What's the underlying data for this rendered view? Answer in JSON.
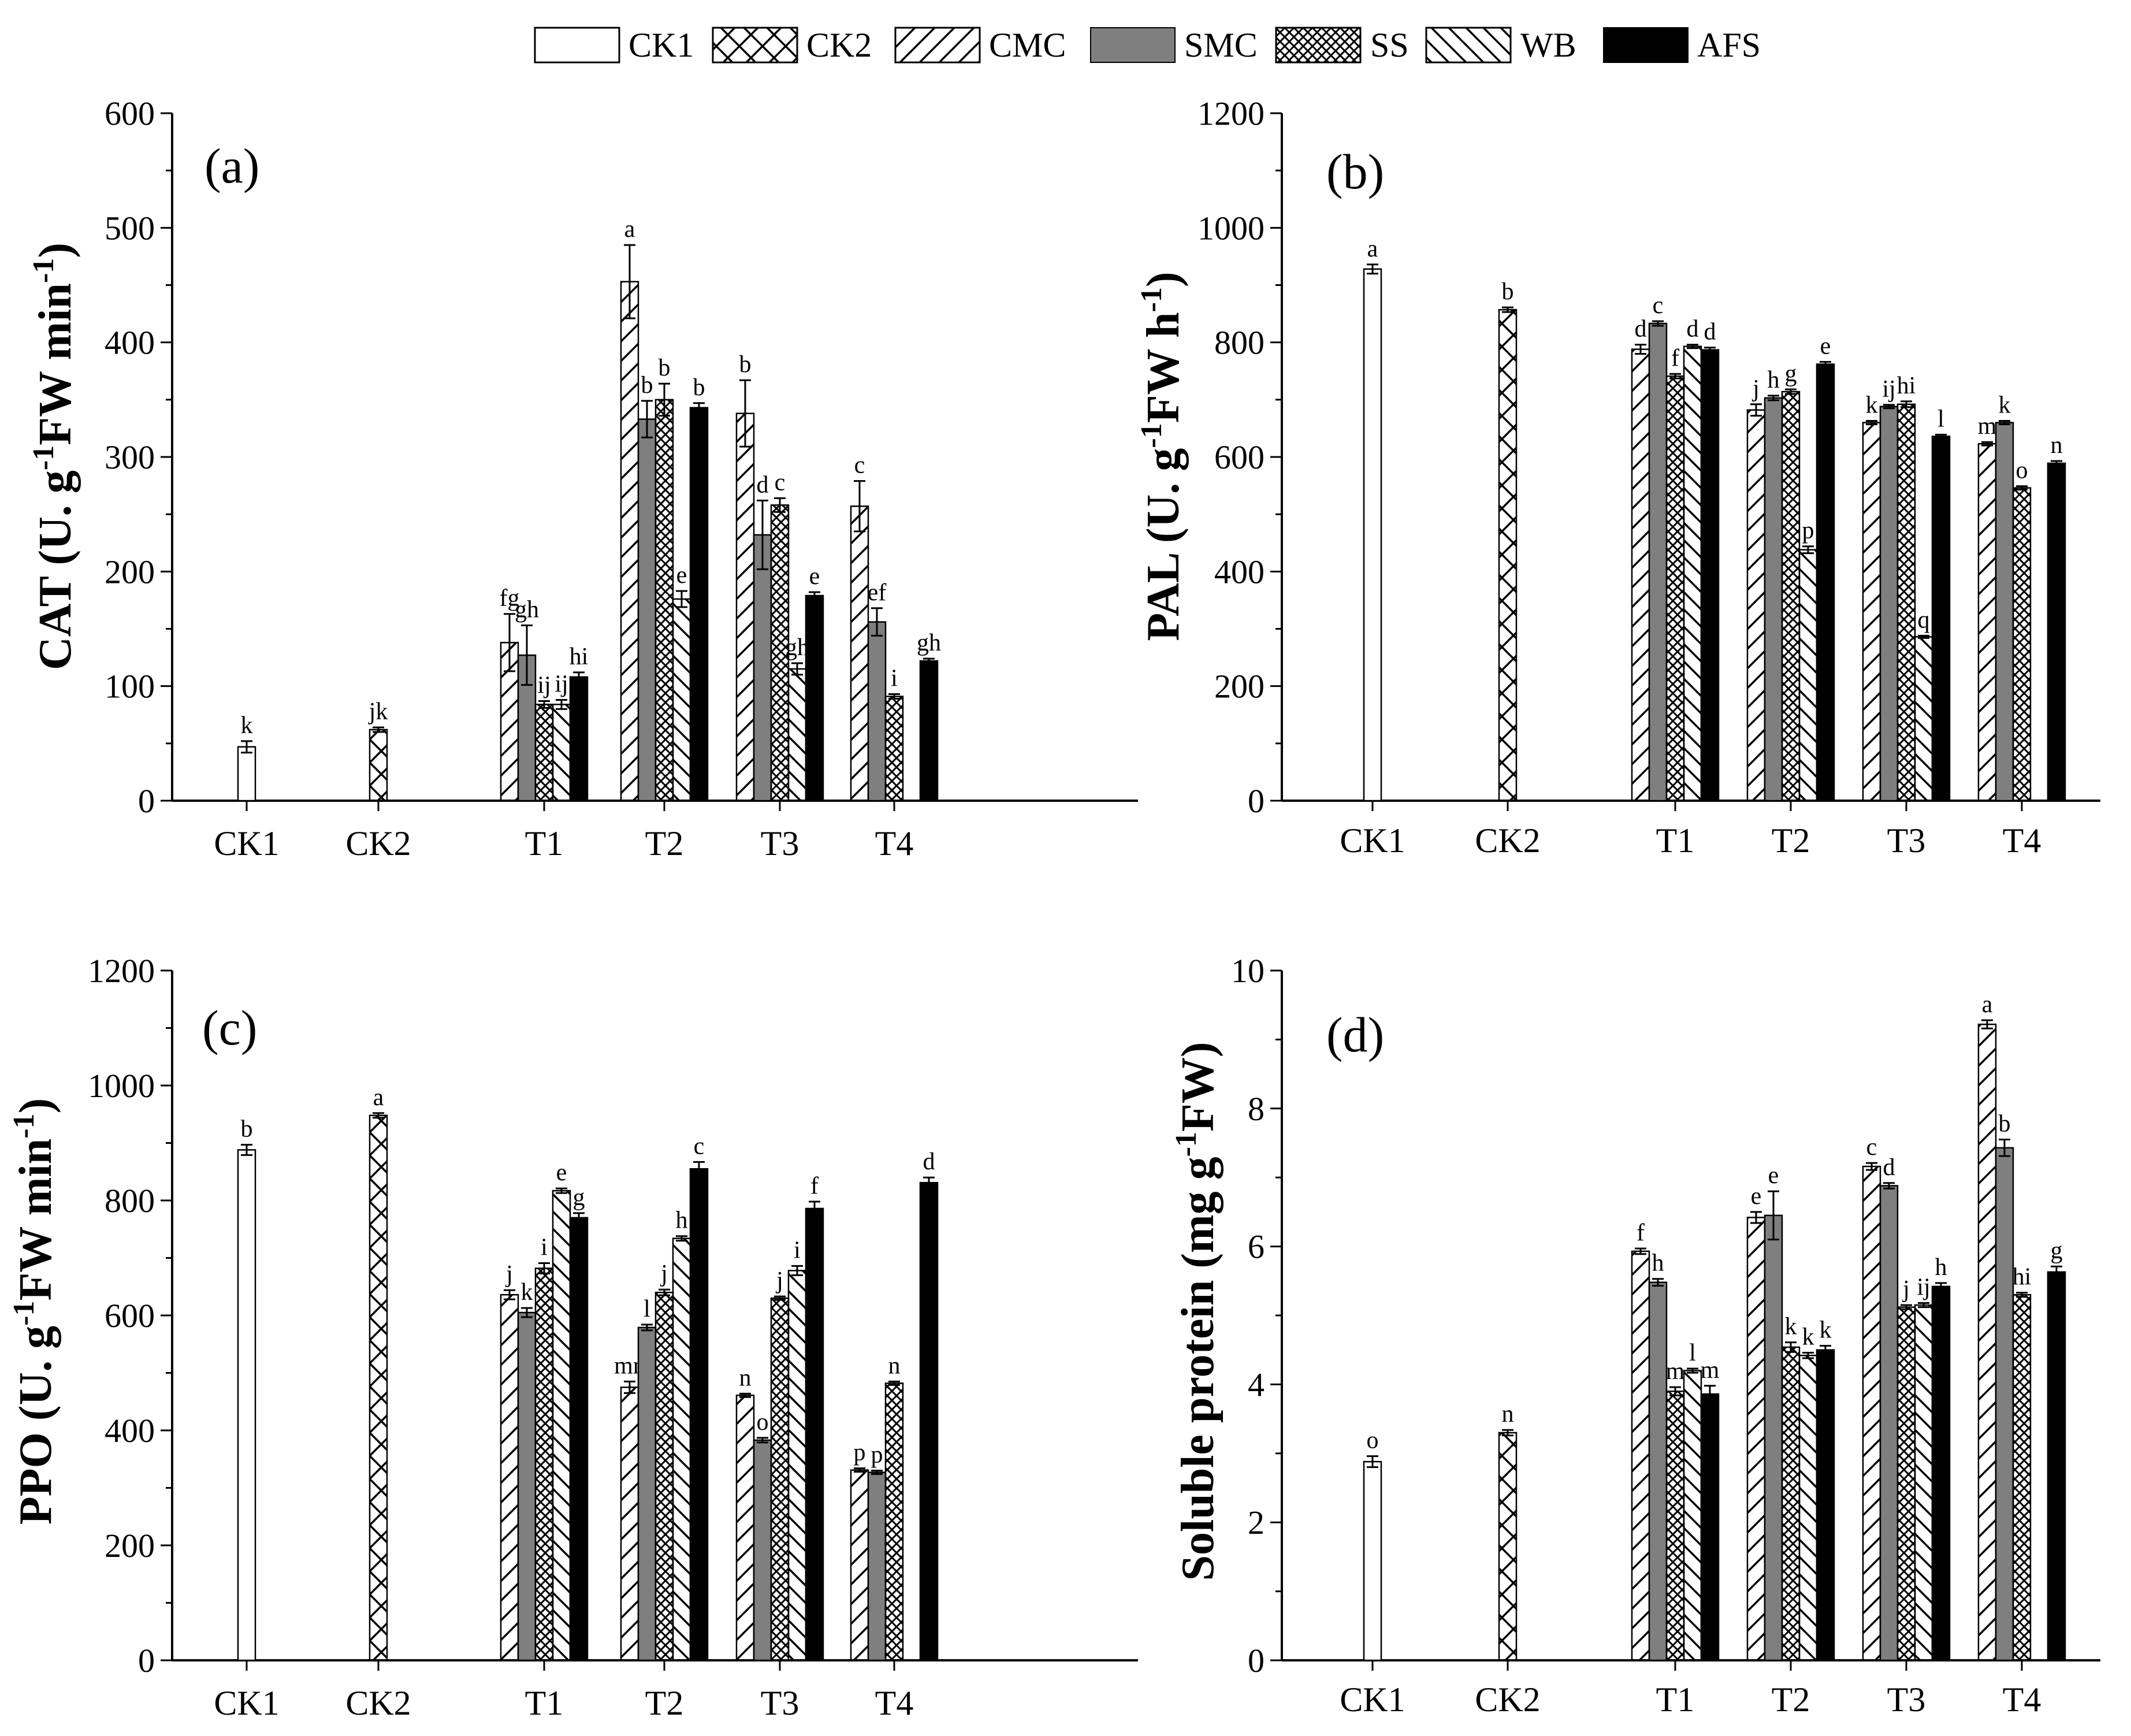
{
  "legend": {
    "items": [
      {
        "name": "CK1",
        "pattern": "empty"
      },
      {
        "name": "CK2",
        "pattern": "cross"
      },
      {
        "name": "CMC",
        "pattern": "slash"
      },
      {
        "name": "SMC",
        "pattern": "gray"
      },
      {
        "name": "SS",
        "pattern": "dense-cross"
      },
      {
        "name": "WB",
        "pattern": "backslash"
      },
      {
        "name": "AFS",
        "pattern": "black"
      }
    ]
  },
  "colors": {
    "bar_stroke": "#000000",
    "gray_fill": "#7f7f7f",
    "black_fill": "#000000",
    "background": "#ffffff"
  },
  "chart_data": [
    {
      "type": "bar",
      "panel": "(a)",
      "ylabel_main": "CAT (U. g",
      "ylabel_sup1": "-1",
      "ylabel_mid": "FW min",
      "ylabel_sup2": "-1",
      "ylabel_end": ")",
      "ylim": [
        0,
        600
      ],
      "yticks": [
        "0",
        "100",
        "200",
        "300",
        "400",
        "500",
        "600"
      ],
      "categories": [
        "CK1",
        "CK2",
        "T1",
        "T2",
        "T3",
        "T4"
      ],
      "bars": [
        {
          "category": "CK1",
          "series": "CK1",
          "value": 47,
          "err": 5,
          "sig": "k"
        },
        {
          "category": "CK2",
          "series": "CK2",
          "value": 62,
          "err": 2,
          "sig": "jk"
        },
        {
          "category": "T1",
          "series": "CMC",
          "value": 138,
          "err": 25,
          "sig": "fg"
        },
        {
          "category": "T1",
          "series": "SMC",
          "value": 127,
          "err": 26,
          "sig": "gh"
        },
        {
          "category": "T1",
          "series": "SS",
          "value": 84,
          "err": 3,
          "sig": "ij"
        },
        {
          "category": "T1",
          "series": "WB",
          "value": 84,
          "err": 4,
          "sig": "ij"
        },
        {
          "category": "T1",
          "series": "AFS",
          "value": 108,
          "err": 4,
          "sig": "hi"
        },
        {
          "category": "T2",
          "series": "CMC",
          "value": 453,
          "err": 32,
          "sig": "a"
        },
        {
          "category": "T2",
          "series": "SMC",
          "value": 333,
          "err": 16,
          "sig": "b"
        },
        {
          "category": "T2",
          "series": "SS",
          "value": 350,
          "err": 14,
          "sig": "b"
        },
        {
          "category": "T2",
          "series": "WB",
          "value": 176,
          "err": 7,
          "sig": "e"
        },
        {
          "category": "T2",
          "series": "AFS",
          "value": 343,
          "err": 4,
          "sig": "b"
        },
        {
          "category": "T3",
          "series": "CMC",
          "value": 338,
          "err": 29,
          "sig": "b"
        },
        {
          "category": "T3",
          "series": "SMC",
          "value": 232,
          "err": 30,
          "sig": "d"
        },
        {
          "category": "T3",
          "series": "SS",
          "value": 258,
          "err": 6,
          "sig": "c"
        },
        {
          "category": "T3",
          "series": "WB",
          "value": 115,
          "err": 5,
          "sig": "gh"
        },
        {
          "category": "T3",
          "series": "AFS",
          "value": 179,
          "err": 3,
          "sig": "e"
        },
        {
          "category": "T4",
          "series": "CMC",
          "value": 257,
          "err": 22,
          "sig": "c"
        },
        {
          "category": "T4",
          "series": "SMC",
          "value": 156,
          "err": 12,
          "sig": "ef"
        },
        {
          "category": "T4",
          "series": "SS",
          "value": 91,
          "err": 2,
          "sig": "i"
        },
        {
          "category": "T4",
          "series": "AFS",
          "value": 122,
          "err": 2,
          "sig": "gh"
        }
      ]
    },
    {
      "type": "bar",
      "panel": "(b)",
      "ylabel_main": "PAL (U. g",
      "ylabel_sup1": "-1",
      "ylabel_mid": "FW h",
      "ylabel_sup2": "-1",
      "ylabel_end": ")",
      "ylim": [
        0,
        1200
      ],
      "yticks": [
        "0",
        "200",
        "400",
        "600",
        "800",
        "1000",
        "1200"
      ],
      "categories": [
        "CK1",
        "CK2",
        "T1",
        "T2",
        "T3",
        "T4"
      ],
      "bars": [
        {
          "category": "CK1",
          "series": "CK1",
          "value": 928,
          "err": 8,
          "sig": "a"
        },
        {
          "category": "CK2",
          "series": "CK2",
          "value": 857,
          "err": 4,
          "sig": "b"
        },
        {
          "category": "T1",
          "series": "CMC",
          "value": 788,
          "err": 8,
          "sig": "d"
        },
        {
          "category": "T1",
          "series": "SMC",
          "value": 833,
          "err": 4,
          "sig": "c"
        },
        {
          "category": "T1",
          "series": "SS",
          "value": 741,
          "err": 4,
          "sig": "f"
        },
        {
          "category": "T1",
          "series": "WB",
          "value": 793,
          "err": 3,
          "sig": "d"
        },
        {
          "category": "T1",
          "series": "AFS",
          "value": 787,
          "err": 4,
          "sig": "d"
        },
        {
          "category": "T2",
          "series": "CMC",
          "value": 682,
          "err": 10,
          "sig": "j"
        },
        {
          "category": "T2",
          "series": "SMC",
          "value": 703,
          "err": 4,
          "sig": "h"
        },
        {
          "category": "T2",
          "series": "SS",
          "value": 714,
          "err": 4,
          "sig": "g"
        },
        {
          "category": "T2",
          "series": "WB",
          "value": 438,
          "err": 6,
          "sig": "p"
        },
        {
          "category": "T2",
          "series": "AFS",
          "value": 762,
          "err": 4,
          "sig": "e"
        },
        {
          "category": "T3",
          "series": "CMC",
          "value": 660,
          "err": 3,
          "sig": "k"
        },
        {
          "category": "T3",
          "series": "SMC",
          "value": 688,
          "err": 3,
          "sig": "ij"
        },
        {
          "category": "T3",
          "series": "SS",
          "value": 692,
          "err": 5,
          "sig": "hi"
        },
        {
          "category": "T3",
          "series": "WB",
          "value": 286,
          "err": 2,
          "sig": "q"
        },
        {
          "category": "T3",
          "series": "AFS",
          "value": 636,
          "err": 3,
          "sig": "l"
        },
        {
          "category": "T4",
          "series": "CMC",
          "value": 623,
          "err": 3,
          "sig": "m"
        },
        {
          "category": "T4",
          "series": "SMC",
          "value": 660,
          "err": 3,
          "sig": "k"
        },
        {
          "category": "T4",
          "series": "SS",
          "value": 546,
          "err": 3,
          "sig": "o"
        },
        {
          "category": "T4",
          "series": "AFS",
          "value": 589,
          "err": 4,
          "sig": "n"
        }
      ]
    },
    {
      "type": "bar",
      "panel": "(c)",
      "ylabel_main": "PPO (U. g",
      "ylabel_sup1": "-1",
      "ylabel_mid": "FW min",
      "ylabel_sup2": "-1",
      "ylabel_end": ")",
      "ylim": [
        0,
        1200
      ],
      "yticks": [
        "0",
        "200",
        "400",
        "600",
        "800",
        "1000",
        "1200"
      ],
      "categories": [
        "CK1",
        "CK2",
        "T1",
        "T2",
        "T3",
        "T4"
      ],
      "bars": [
        {
          "category": "CK1",
          "series": "CK1",
          "value": 888,
          "err": 9,
          "sig": "b"
        },
        {
          "category": "CK2",
          "series": "CK2",
          "value": 948,
          "err": 4,
          "sig": "a"
        },
        {
          "category": "T1",
          "series": "CMC",
          "value": 636,
          "err": 8,
          "sig": "j"
        },
        {
          "category": "T1",
          "series": "SMC",
          "value": 605,
          "err": 8,
          "sig": "k"
        },
        {
          "category": "T1",
          "series": "SS",
          "value": 682,
          "err": 9,
          "sig": "i"
        },
        {
          "category": "T1",
          "series": "WB",
          "value": 817,
          "err": 4,
          "sig": "e"
        },
        {
          "category": "T1",
          "series": "AFS",
          "value": 770,
          "err": 8,
          "sig": "g"
        },
        {
          "category": "T2",
          "series": "CMC",
          "value": 475,
          "err": 10,
          "sig": "mn"
        },
        {
          "category": "T2",
          "series": "SMC",
          "value": 579,
          "err": 5,
          "sig": "l"
        },
        {
          "category": "T2",
          "series": "SS",
          "value": 640,
          "err": 5,
          "sig": "j"
        },
        {
          "category": "T2",
          "series": "WB",
          "value": 734,
          "err": 4,
          "sig": "h"
        },
        {
          "category": "T2",
          "series": "AFS",
          "value": 855,
          "err": 12,
          "sig": "c"
        },
        {
          "category": "T3",
          "series": "CMC",
          "value": 461,
          "err": 3,
          "sig": "n"
        },
        {
          "category": "T3",
          "series": "SMC",
          "value": 383,
          "err": 4,
          "sig": "o"
        },
        {
          "category": "T3",
          "series": "SS",
          "value": 630,
          "err": 3,
          "sig": "j"
        },
        {
          "category": "T3",
          "series": "WB",
          "value": 678,
          "err": 8,
          "sig": "i"
        },
        {
          "category": "T3",
          "series": "AFS",
          "value": 786,
          "err": 12,
          "sig": "f"
        },
        {
          "category": "T4",
          "series": "CMC",
          "value": 331,
          "err": 3,
          "sig": "p"
        },
        {
          "category": "T4",
          "series": "SMC",
          "value": 327,
          "err": 3,
          "sig": "p"
        },
        {
          "category": "T4",
          "series": "SS",
          "value": 482,
          "err": 3,
          "sig": "n"
        },
        {
          "category": "T4",
          "series": "AFS",
          "value": 831,
          "err": 9,
          "sig": "d"
        }
      ]
    },
    {
      "type": "bar",
      "panel": "(d)",
      "ylabel_main": "Soluble protein (mg g",
      "ylabel_sup1": "-1",
      "ylabel_mid": "FW)",
      "ylabel_sup2": "",
      "ylabel_end": "",
      "ylim": [
        0,
        10
      ],
      "yticks": [
        "0",
        "2",
        "4",
        "6",
        "8",
        "10"
      ],
      "categories": [
        "CK1",
        "CK2",
        "T1",
        "T2",
        "T3",
        "T4"
      ],
      "bars": [
        {
          "category": "CK1",
          "series": "CK1",
          "value": 2.88,
          "err": 0.08,
          "sig": "o"
        },
        {
          "category": "CK2",
          "series": "CK2",
          "value": 3.3,
          "err": 0.04,
          "sig": "n"
        },
        {
          "category": "T1",
          "series": "CMC",
          "value": 5.93,
          "err": 0.04,
          "sig": "f"
        },
        {
          "category": "T1",
          "series": "SMC",
          "value": 5.48,
          "err": 0.05,
          "sig": "h"
        },
        {
          "category": "T1",
          "series": "SS",
          "value": 3.9,
          "err": 0.06,
          "sig": "m"
        },
        {
          "category": "T1",
          "series": "WB",
          "value": 4.2,
          "err": 0.03,
          "sig": "l"
        },
        {
          "category": "T1",
          "series": "AFS",
          "value": 3.86,
          "err": 0.12,
          "sig": "m"
        },
        {
          "category": "T2",
          "series": "CMC",
          "value": 6.42,
          "err": 0.08,
          "sig": "e"
        },
        {
          "category": "T2",
          "series": "SMC",
          "value": 6.45,
          "err": 0.35,
          "sig": "e"
        },
        {
          "category": "T2",
          "series": "SS",
          "value": 4.54,
          "err": 0.07,
          "sig": "k"
        },
        {
          "category": "T2",
          "series": "WB",
          "value": 4.42,
          "err": 0.04,
          "sig": "k"
        },
        {
          "category": "T2",
          "series": "AFS",
          "value": 4.5,
          "err": 0.06,
          "sig": "k"
        },
        {
          "category": "T3",
          "series": "CMC",
          "value": 7.16,
          "err": 0.05,
          "sig": "c"
        },
        {
          "category": "T3",
          "series": "SMC",
          "value": 6.88,
          "err": 0.04,
          "sig": "d"
        },
        {
          "category": "T3",
          "series": "SS",
          "value": 5.12,
          "err": 0.03,
          "sig": "j"
        },
        {
          "category": "T3",
          "series": "WB",
          "value": 5.15,
          "err": 0.03,
          "sig": "ij"
        },
        {
          "category": "T3",
          "series": "AFS",
          "value": 5.42,
          "err": 0.05,
          "sig": "h"
        },
        {
          "category": "T4",
          "series": "CMC",
          "value": 9.22,
          "err": 0.06,
          "sig": "a"
        },
        {
          "category": "T4",
          "series": "SMC",
          "value": 7.43,
          "err": 0.12,
          "sig": "b"
        },
        {
          "category": "T4",
          "series": "SS",
          "value": 5.3,
          "err": 0.03,
          "sig": "hi"
        },
        {
          "category": "T4",
          "series": "AFS",
          "value": 5.63,
          "err": 0.08,
          "sig": "g"
        }
      ]
    }
  ]
}
